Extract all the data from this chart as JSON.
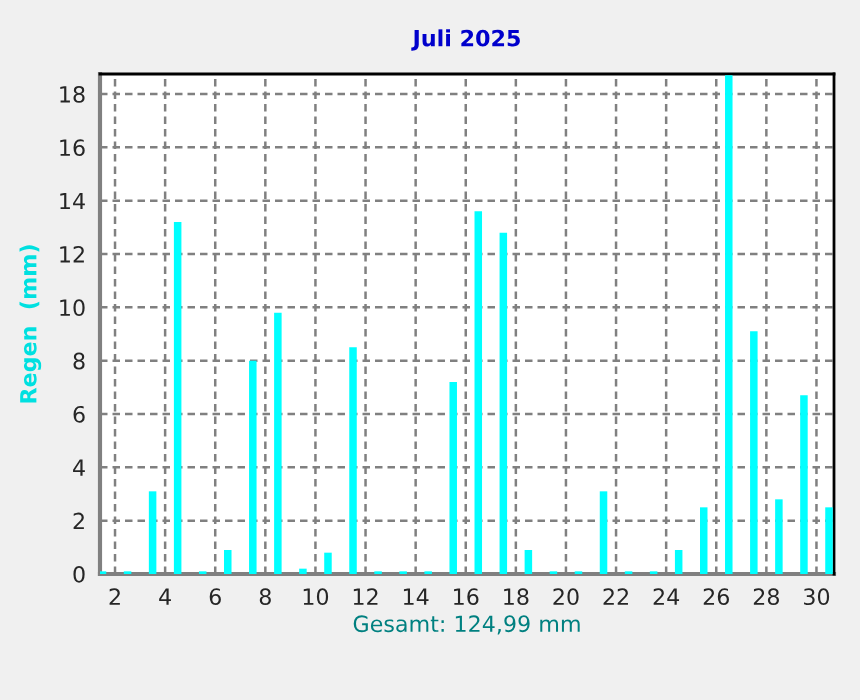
{
  "chart_data": {
    "type": "bar",
    "title": "Juli 2025",
    "xlabel": "Gesamt: 124,99 mm",
    "ylabel": "Regen  (mm)",
    "x": [
      1.5,
      2.5,
      3.5,
      4.5,
      5.5,
      6.5,
      7.5,
      8.5,
      9.5,
      10.5,
      11.5,
      12.5,
      13.5,
      14.5,
      15.5,
      16.5,
      17.5,
      18.5,
      19.5,
      20.5,
      21.5,
      22.5,
      23.5,
      24.5,
      25.5,
      26.5,
      27.5,
      28.5,
      29.5,
      30.5
    ],
    "series": [
      {
        "color": "#00ffff",
        "values": [
          0.1,
          0.1,
          3.1,
          13.2,
          0.1,
          0.9,
          8.0,
          9.8,
          0.2,
          0.8,
          8.5,
          0.1,
          0.1,
          0.1,
          7.2,
          13.6,
          12.8,
          0.9,
          0.1,
          0.1,
          3.1,
          0.1,
          0.1,
          0.9,
          2.5,
          18.7,
          9.1,
          2.8,
          6.7,
          2.5
        ]
      }
    ],
    "xlim": [
      1.4,
      30.7
    ],
    "ylim": [
      0,
      18.75
    ],
    "xticks": [
      2,
      4,
      6,
      8,
      10,
      12,
      14,
      16,
      18,
      20,
      22,
      24,
      26,
      28,
      30
    ],
    "yticks": [
      0,
      2,
      4,
      6,
      8,
      10,
      12,
      14,
      16,
      18
    ],
    "grid": true
  }
}
